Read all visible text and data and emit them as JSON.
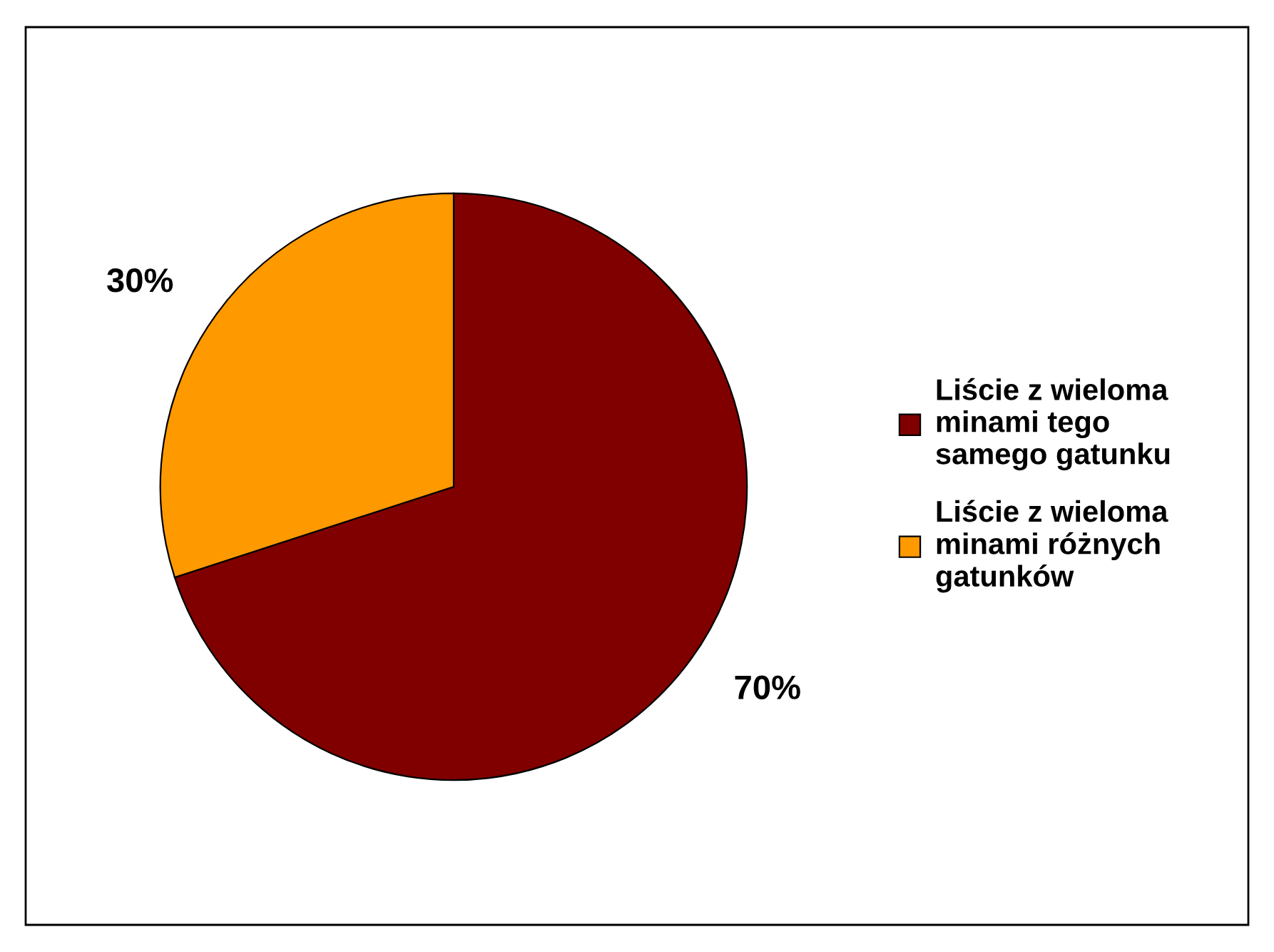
{
  "chart_data": {
    "type": "pie",
    "categories": [
      "Liście z wieloma minami tego samego gatunku",
      "Liście z wieloma minami różnych gatunków"
    ],
    "values": [
      70,
      30
    ],
    "value_labels": [
      "70%",
      "30%"
    ],
    "colors": [
      "#800000",
      "#ff9900"
    ],
    "legend": "right"
  }
}
